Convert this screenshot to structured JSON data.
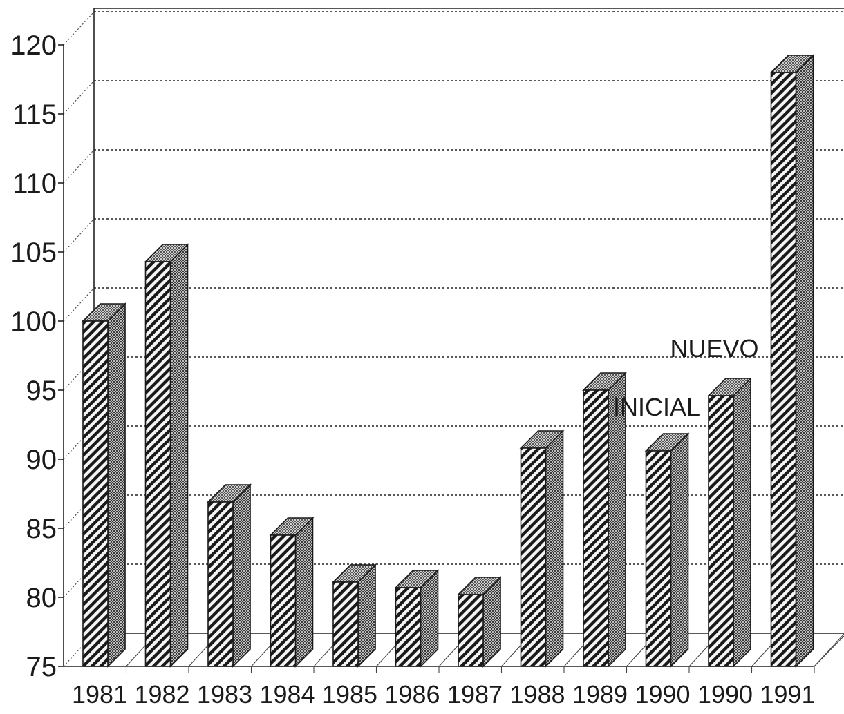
{
  "chart_data": {
    "type": "bar",
    "categories": [
      "1981",
      "1982",
      "1983",
      "1984",
      "1985",
      "1986",
      "1987",
      "1988",
      "1989",
      "1990",
      "1990",
      "1991"
    ],
    "values": [
      100.0,
      104.3,
      86.9,
      84.5,
      81.1,
      80.7,
      80.2,
      90.8,
      95.0,
      90.6,
      94.6,
      118.0
    ],
    "title": "",
    "xlabel": "",
    "ylabel": "",
    "ylim": [
      75,
      120
    ],
    "yticks": [
      75,
      80,
      85,
      90,
      95,
      100,
      105,
      110,
      115,
      120
    ],
    "grid": true,
    "style": "3d-hatched",
    "annotations": [
      {
        "text": "NUEVO",
        "category_index": 10
      },
      {
        "text": "INICIAL",
        "category_index": 9
      }
    ]
  }
}
